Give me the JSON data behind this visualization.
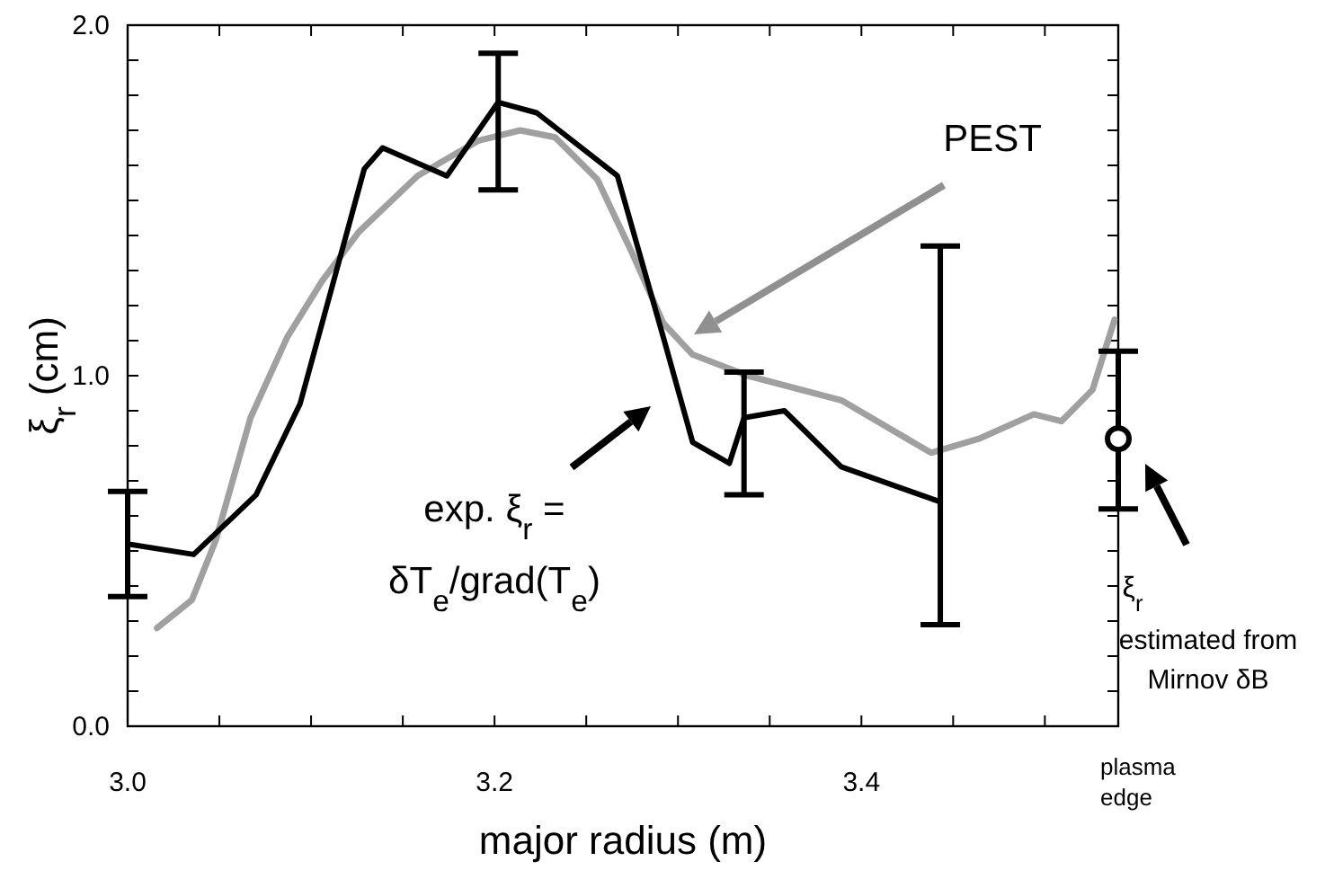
{
  "chart_data": {
    "type": "line",
    "xlabel": "major radius (m)",
    "ylabel": "ξ$_{r}$ (cm)",
    "xlim": [
      3.0,
      3.54
    ],
    "ylim": [
      0,
      2
    ],
    "xticks": [
      {
        "value": 3.0,
        "label": "3.0"
      },
      {
        "value": 3.05,
        "label": null
      },
      {
        "value": 3.1,
        "label": null
      },
      {
        "value": 3.15,
        "label": null
      },
      {
        "value": 3.2,
        "label": "3.2"
      },
      {
        "value": 3.25,
        "label": null
      },
      {
        "value": 3.3,
        "label": null
      },
      {
        "value": 3.35,
        "label": null
      },
      {
        "value": 3.4,
        "label": "3.4"
      },
      {
        "value": 3.45,
        "label": null
      },
      {
        "value": 3.5,
        "label": null
      },
      {
        "value": 3.54,
        "label": null
      }
    ],
    "yticks": [
      {
        "value": 0,
        "label": "0.0"
      },
      {
        "value": 0.1,
        "label": null
      },
      {
        "value": 0.2,
        "label": null
      },
      {
        "value": 0.3,
        "label": null
      },
      {
        "value": 0.4,
        "label": null
      },
      {
        "value": 0.5,
        "label": null
      },
      {
        "value": 0.6,
        "label": null
      },
      {
        "value": 0.7,
        "label": null
      },
      {
        "value": 0.8,
        "label": null
      },
      {
        "value": 0.9,
        "label": null
      },
      {
        "value": 1,
        "label": "1.0"
      },
      {
        "value": 1.1,
        "label": null
      },
      {
        "value": 1.2,
        "label": null
      },
      {
        "value": 1.3,
        "label": null
      },
      {
        "value": 1.4,
        "label": null
      },
      {
        "value": 1.5,
        "label": null
      },
      {
        "value": 1.6,
        "label": null
      },
      {
        "value": 1.7,
        "label": null
      },
      {
        "value": 1.8,
        "label": null
      },
      {
        "value": 1.9,
        "label": null
      },
      {
        "value": 2,
        "label": "2.0"
      }
    ],
    "grid": false,
    "series": [
      {
        "color": "#a0a0a0",
        "marker": "none",
        "x": [
          3.016,
          3.035,
          3.048,
          3.067,
          3.087,
          3.106,
          3.126,
          3.158,
          3.191,
          3.214,
          3.233,
          3.256,
          3.275,
          3.292,
          3.308,
          3.338,
          3.389,
          3.438,
          3.464,
          3.494,
          3.509,
          3.526,
          3.538
        ],
        "values": [
          0.28,
          0.36,
          0.53,
          0.88,
          1.11,
          1.27,
          1.41,
          1.57,
          1.67,
          1.7,
          1.68,
          1.56,
          1.35,
          1.15,
          1.06,
          1.0,
          0.93,
          0.78,
          0.82,
          0.89,
          0.87,
          0.96,
          1.16
        ]
      },
      {
        "color": "#000000",
        "marker": "none",
        "x": [
          3.0,
          3.036,
          3.07,
          3.094,
          3.129,
          3.139,
          3.174,
          3.202,
          3.223,
          3.267,
          3.292,
          3.308,
          3.328,
          3.336,
          3.358,
          3.389,
          3.443
        ],
        "values": [
          0.52,
          0.49,
          0.66,
          0.92,
          1.59,
          1.65,
          1.57,
          1.78,
          1.75,
          1.57,
          1.11,
          0.81,
          0.75,
          0.88,
          0.9,
          0.74,
          0.64
        ],
        "errors": [
          [
            0.37,
            0.67
          ],
          null,
          null,
          null,
          null,
          null,
          null,
          [
            1.53,
            1.92
          ],
          null,
          null,
          null,
          null,
          null,
          [
            0.66,
            1.01
          ],
          null,
          null,
          [
            0.29,
            1.37
          ]
        ]
      },
      {
        "type": "scatter",
        "color": "#000000",
        "marker": "circle",
        "x": [
          3.54
        ],
        "values": [
          0.82
        ],
        "errors": [
          [
            0.62,
            1.07
          ]
        ]
      }
    ],
    "annotations": [
      "PEST",
      "exp. ξ$_{r}$ =",
      "δT$_{e}$/grad(T$_{e}$)",
      "ξ$_{r}$",
      "estimated from",
      "Mirnov δB",
      "plasma",
      "edge"
    ]
  }
}
